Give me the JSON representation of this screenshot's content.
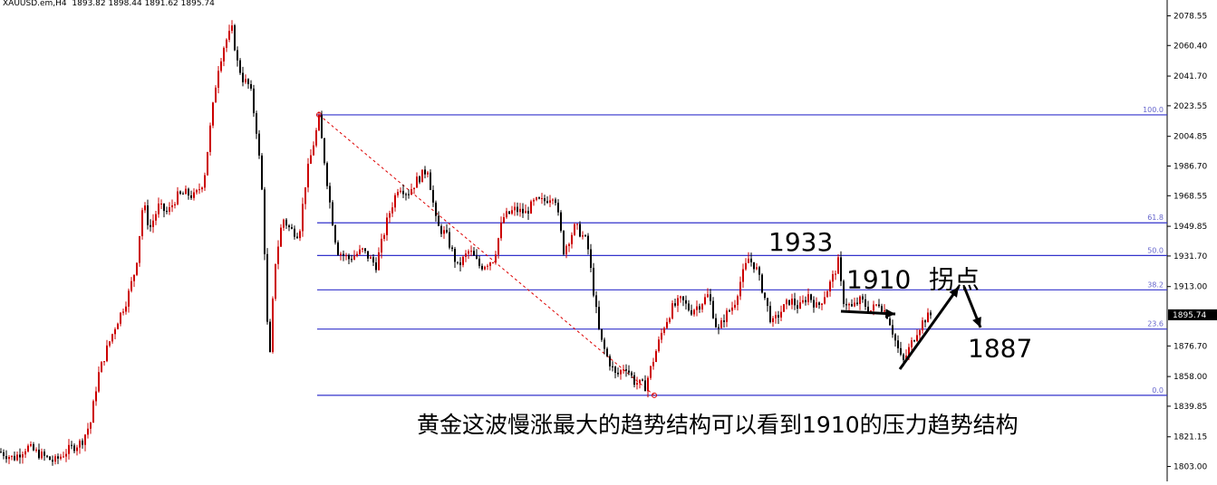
{
  "header": {
    "symbol": "XAUUSD.em,H4",
    "ohlc": "1893.82 1898.44 1891.62 1895.74"
  },
  "colors": {
    "bull": "#cc0000",
    "bear": "#000000",
    "fib_line": "#3333cc",
    "fib_label": "#6666cc",
    "trend": "#dd0000",
    "price_tag_bg": "#000000",
    "price_tag_fg": "#ffffff",
    "annotation": "#000000"
  },
  "chart_data": {
    "type": "candlestick",
    "title": "",
    "xlabel": "",
    "ylabel": "",
    "ylim": [
      1795.0,
      2086.0
    ],
    "grid": false,
    "y_ticks": [
      "2078.55",
      "2060.40",
      "2041.70",
      "2023.55",
      "2004.85",
      "1986.70",
      "1968.55",
      "1949.85",
      "1931.70",
      "1913.00",
      "1895.74",
      "1876.70",
      "1858.00",
      "1839.85",
      "1821.15",
      "1803.00"
    ],
    "last_price": "1895.74",
    "fib_levels": [
      {
        "label": "100.0",
        "price": 2018.0
      },
      {
        "label": "61.8",
        "price": 1952.0
      },
      {
        "label": "50.0",
        "price": 1932.0
      },
      {
        "label": "38.2",
        "price": 1911.0
      },
      {
        "label": "23.6",
        "price": 1887.0
      },
      {
        "label": "0.0",
        "price": 1846.5
      }
    ],
    "price_path": [
      [
        0,
        1812
      ],
      [
        15,
        1808
      ],
      [
        30,
        1815
      ],
      [
        45,
        1810
      ],
      [
        60,
        1806
      ],
      [
        75,
        1813
      ],
      [
        90,
        1818
      ],
      [
        100,
        1830
      ],
      [
        108,
        1858
      ],
      [
        118,
        1875
      ],
      [
        128,
        1890
      ],
      [
        140,
        1905
      ],
      [
        150,
        1925
      ],
      [
        158,
        1965
      ],
      [
        165,
        1948
      ],
      [
        175,
        1962
      ],
      [
        185,
        1958
      ],
      [
        195,
        1968
      ],
      [
        205,
        1970
      ],
      [
        215,
        1968
      ],
      [
        225,
        1978
      ],
      [
        232,
        2010
      ],
      [
        240,
        2045
      ],
      [
        248,
        2062
      ],
      [
        256,
        2070
      ],
      [
        262,
        2050
      ],
      [
        268,
        2040
      ],
      [
        276,
        2035
      ],
      [
        284,
        2005
      ],
      [
        290,
        1965
      ],
      [
        297,
        1860
      ],
      [
        303,
        1925
      ],
      [
        312,
        1955
      ],
      [
        320,
        1948
      ],
      [
        330,
        1945
      ],
      [
        338,
        1980
      ],
      [
        345,
        1998
      ],
      [
        352,
        2015
      ],
      [
        358,
        1990
      ],
      [
        365,
        1960
      ],
      [
        372,
        1935
      ],
      [
        385,
        1930
      ],
      [
        400,
        1935
      ],
      [
        415,
        1926
      ],
      [
        428,
        1955
      ],
      [
        440,
        1975
      ],
      [
        450,
        1970
      ],
      [
        460,
        1978
      ],
      [
        472,
        1985
      ],
      [
        482,
        1950
      ],
      [
        492,
        1945
      ],
      [
        505,
        1925
      ],
      [
        518,
        1935
      ],
      [
        530,
        1925
      ],
      [
        545,
        1930
      ],
      [
        555,
        1955
      ],
      [
        568,
        1960
      ],
      [
        580,
        1958
      ],
      [
        590,
        1965
      ],
      [
        600,
        1965
      ],
      [
        612,
        1970
      ],
      [
        622,
        1935
      ],
      [
        635,
        1950
      ],
      [
        648,
        1940
      ],
      [
        655,
        1910
      ],
      [
        662,
        1882
      ],
      [
        670,
        1870
      ],
      [
        680,
        1858
      ],
      [
        690,
        1865
      ],
      [
        700,
        1855
      ],
      [
        712,
        1852
      ],
      [
        722,
        1870
      ],
      [
        732,
        1888
      ],
      [
        742,
        1900
      ],
      [
        752,
        1905
      ],
      [
        762,
        1898
      ],
      [
        772,
        1902
      ],
      [
        782,
        1908
      ],
      [
        792,
        1885
      ],
      [
        800,
        1895
      ],
      [
        810,
        1902
      ],
      [
        818,
        1918
      ],
      [
        826,
        1930
      ],
      [
        834,
        1925
      ],
      [
        842,
        1910
      ],
      [
        852,
        1890
      ],
      [
        862,
        1898
      ],
      [
        872,
        1905
      ],
      [
        882,
        1900
      ],
      [
        892,
        1908
      ],
      [
        902,
        1900
      ],
      [
        912,
        1910
      ],
      [
        920,
        1920
      ],
      [
        925,
        1928
      ],
      [
        930,
        1905
      ],
      [
        940,
        1900
      ],
      [
        950,
        1905
      ],
      [
        960,
        1898
      ],
      [
        970,
        1903
      ],
      [
        980,
        1895
      ],
      [
        988,
        1880
      ],
      [
        996,
        1866
      ],
      [
        1004,
        1876
      ],
      [
        1012,
        1886
      ],
      [
        1020,
        1893
      ],
      [
        1028,
        1896
      ]
    ],
    "trend_line": {
      "from": [
        352,
        2018
      ],
      "to": [
        722,
        1846.5
      ]
    },
    "annotations": [
      {
        "text": "1933",
        "x": 848,
        "price": 1935
      },
      {
        "text": "1910",
        "x": 934,
        "price": 1912
      },
      {
        "text": "拐点",
        "x": 1025,
        "price": 1912
      },
      {
        "text": "1887",
        "x": 1068,
        "price": 1870
      }
    ],
    "caption": "黄金这波慢涨最大的趋势结构可以看到1910的压力趋势结构"
  }
}
